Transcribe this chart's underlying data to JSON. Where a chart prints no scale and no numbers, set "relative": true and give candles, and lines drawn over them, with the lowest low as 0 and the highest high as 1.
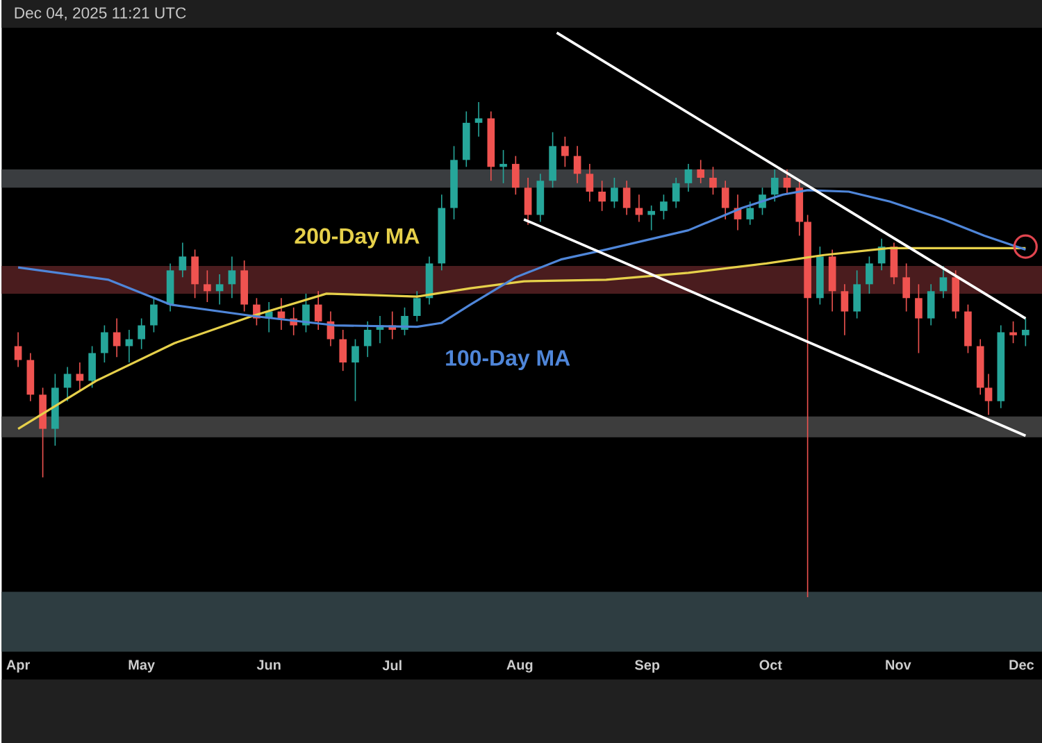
{
  "chart_data": {
    "type": "candlestick",
    "relative": true,
    "annotations": [
      "Dec 04, 2025 11:21 UTC"
    ],
    "xlim": [
      "2025-03-28",
      "2025-12-06"
    ],
    "xticks": [
      {
        "value": "2025-04-01",
        "label": "Apr"
      },
      {
        "value": "2025-05-01",
        "label": "May"
      },
      {
        "value": "2025-06-01",
        "label": "Jun"
      },
      {
        "value": "2025-07-01",
        "label": "Jul"
      },
      {
        "value": "2025-08-01",
        "label": "Aug"
      },
      {
        "value": "2025-09-01",
        "label": "Sep"
      },
      {
        "value": "2025-10-01",
        "label": "Oct"
      },
      {
        "value": "2025-11-01",
        "label": "Nov"
      },
      {
        "value": "2025-12-01",
        "label": "Dec"
      }
    ],
    "x": [
      "2025-04-01",
      "2025-04-04",
      "2025-04-07",
      "2025-04-10",
      "2025-04-13",
      "2025-04-16",
      "2025-04-19",
      "2025-04-22",
      "2025-04-25",
      "2025-04-28",
      "2025-05-01",
      "2025-05-04",
      "2025-05-08",
      "2025-05-11",
      "2025-05-14",
      "2025-05-17",
      "2025-05-20",
      "2025-05-23",
      "2025-05-26",
      "2025-05-29",
      "2025-06-01",
      "2025-06-04",
      "2025-06-07",
      "2025-06-10",
      "2025-06-13",
      "2025-06-16",
      "2025-06-19",
      "2025-06-22",
      "2025-06-25",
      "2025-06-28",
      "2025-07-01",
      "2025-07-04",
      "2025-07-07",
      "2025-07-10",
      "2025-07-13",
      "2025-07-16",
      "2025-07-19",
      "2025-07-22",
      "2025-07-25",
      "2025-07-28",
      "2025-07-31",
      "2025-08-03",
      "2025-08-06",
      "2025-08-09",
      "2025-08-12",
      "2025-08-15",
      "2025-08-18",
      "2025-08-21",
      "2025-08-24",
      "2025-08-27",
      "2025-08-30",
      "2025-09-02",
      "2025-09-05",
      "2025-09-08",
      "2025-09-11",
      "2025-09-14",
      "2025-09-17",
      "2025-09-20",
      "2025-09-23",
      "2025-09-26",
      "2025-09-29",
      "2025-10-02",
      "2025-10-05",
      "2025-10-08",
      "2025-10-10",
      "2025-10-13",
      "2025-10-16",
      "2025-10-19",
      "2025-10-22",
      "2025-10-25",
      "2025-10-28",
      "2025-10-31",
      "2025-11-03",
      "2025-11-06",
      "2025-11-09",
      "2025-11-12",
      "2025-11-15",
      "2025-11-18",
      "2025-11-21",
      "2025-11-23",
      "2025-11-26",
      "2025-11-29",
      "2025-12-02"
    ],
    "ohlc": [
      [
        0.507,
        0.535,
        0.465,
        0.479
      ],
      [
        0.479,
        0.493,
        0.396,
        0.409
      ],
      [
        0.409,
        0.423,
        0.242,
        0.34
      ],
      [
        0.34,
        0.451,
        0.306,
        0.423
      ],
      [
        0.423,
        0.465,
        0.396,
        0.451
      ],
      [
        0.451,
        0.474,
        0.418,
        0.437
      ],
      [
        0.437,
        0.507,
        0.423,
        0.493
      ],
      [
        0.493,
        0.549,
        0.474,
        0.535
      ],
      [
        0.535,
        0.563,
        0.485,
        0.507
      ],
      [
        0.507,
        0.54,
        0.474,
        0.521
      ],
      [
        0.521,
        0.563,
        0.501,
        0.549
      ],
      [
        0.549,
        0.604,
        0.535,
        0.591
      ],
      [
        0.591,
        0.674,
        0.577,
        0.66
      ],
      [
        0.66,
        0.716,
        0.646,
        0.688
      ],
      [
        0.688,
        0.702,
        0.604,
        0.632
      ],
      [
        0.632,
        0.66,
        0.596,
        0.618
      ],
      [
        0.618,
        0.652,
        0.591,
        0.632
      ],
      [
        0.632,
        0.688,
        0.604,
        0.66
      ],
      [
        0.66,
        0.68,
        0.577,
        0.591
      ],
      [
        0.591,
        0.604,
        0.549,
        0.563
      ],
      [
        0.563,
        0.596,
        0.535,
        0.577
      ],
      [
        0.577,
        0.604,
        0.54,
        0.563
      ],
      [
        0.563,
        0.585,
        0.529,
        0.549
      ],
      [
        0.549,
        0.613,
        0.535,
        0.591
      ],
      [
        0.591,
        0.618,
        0.54,
        0.557
      ],
      [
        0.557,
        0.577,
        0.507,
        0.521
      ],
      [
        0.521,
        0.54,
        0.457,
        0.474
      ],
      [
        0.474,
        0.521,
        0.396,
        0.507
      ],
      [
        0.507,
        0.557,
        0.485,
        0.54
      ],
      [
        0.54,
        0.568,
        0.513,
        0.549
      ],
      [
        0.549,
        0.577,
        0.521,
        0.54
      ],
      [
        0.54,
        0.585,
        0.529,
        0.568
      ],
      [
        0.568,
        0.618,
        0.557,
        0.604
      ],
      [
        0.604,
        0.688,
        0.591,
        0.674
      ],
      [
        0.674,
        0.813,
        0.66,
        0.786
      ],
      [
        0.786,
        0.911,
        0.763,
        0.883
      ],
      [
        0.883,
        0.981,
        0.869,
        0.958
      ],
      [
        0.958,
        1.0,
        0.93,
        0.967
      ],
      [
        0.967,
        0.981,
        0.841,
        0.869
      ],
      [
        0.869,
        0.903,
        0.836,
        0.875
      ],
      [
        0.875,
        0.891,
        0.813,
        0.827
      ],
      [
        0.827,
        0.847,
        0.752,
        0.772
      ],
      [
        0.772,
        0.855,
        0.758,
        0.841
      ],
      [
        0.841,
        0.939,
        0.827,
        0.911
      ],
      [
        0.911,
        0.93,
        0.869,
        0.891
      ],
      [
        0.891,
        0.911,
        0.836,
        0.855
      ],
      [
        0.855,
        0.875,
        0.799,
        0.819
      ],
      [
        0.819,
        0.841,
        0.78,
        0.799
      ],
      [
        0.799,
        0.847,
        0.786,
        0.827
      ],
      [
        0.827,
        0.841,
        0.772,
        0.786
      ],
      [
        0.786,
        0.813,
        0.758,
        0.772
      ],
      [
        0.772,
        0.791,
        0.741,
        0.78
      ],
      [
        0.78,
        0.813,
        0.763,
        0.799
      ],
      [
        0.799,
        0.847,
        0.786,
        0.836
      ],
      [
        0.836,
        0.875,
        0.819,
        0.864
      ],
      [
        0.864,
        0.883,
        0.836,
        0.847
      ],
      [
        0.847,
        0.869,
        0.813,
        0.827
      ],
      [
        0.827,
        0.841,
        0.763,
        0.786
      ],
      [
        0.786,
        0.813,
        0.741,
        0.763
      ],
      [
        0.763,
        0.799,
        0.752,
        0.786
      ],
      [
        0.786,
        0.827,
        0.772,
        0.813
      ],
      [
        0.813,
        0.864,
        0.799,
        0.847
      ],
      [
        0.847,
        0.864,
        0.813,
        0.827
      ],
      [
        0.827,
        0.841,
        0.73,
        0.758
      ],
      [
        0.758,
        0.772,
        0.0,
        0.604
      ],
      [
        0.604,
        0.708,
        0.591,
        0.688
      ],
      [
        0.688,
        0.702,
        0.577,
        0.618
      ],
      [
        0.618,
        0.632,
        0.529,
        0.577
      ],
      [
        0.577,
        0.66,
        0.563,
        0.632
      ],
      [
        0.632,
        0.688,
        0.613,
        0.674
      ],
      [
        0.674,
        0.724,
        0.66,
        0.708
      ],
      [
        0.708,
        0.716,
        0.632,
        0.646
      ],
      [
        0.646,
        0.674,
        0.577,
        0.604
      ],
      [
        0.604,
        0.632,
        0.493,
        0.563
      ],
      [
        0.563,
        0.632,
        0.549,
        0.618
      ],
      [
        0.618,
        0.669,
        0.604,
        0.646
      ],
      [
        0.646,
        0.66,
        0.563,
        0.577
      ],
      [
        0.577,
        0.591,
        0.493,
        0.507
      ],
      [
        0.507,
        0.521,
        0.409,
        0.423
      ],
      [
        0.423,
        0.451,
        0.368,
        0.396
      ],
      [
        0.396,
        0.549,
        0.382,
        0.535
      ],
      [
        0.535,
        0.557,
        0.513,
        0.529
      ],
      [
        0.529,
        0.563,
        0.507,
        0.54
      ]
    ],
    "colors": [
      "#ef5350",
      "#ef5350",
      "#ef5350",
      "#26a69a",
      "#26a69a",
      "#ef5350",
      "#26a69a",
      "#26a69a",
      "#ef5350",
      "#26a69a",
      "#26a69a",
      "#26a69a",
      "#26a69a",
      "#26a69a",
      "#ef5350",
      "#ef5350",
      "#26a69a",
      "#26a69a",
      "#ef5350",
      "#ef5350",
      "#26a69a",
      "#ef5350",
      "#ef5350",
      "#26a69a",
      "#ef5350",
      "#ef5350",
      "#ef5350",
      "#26a69a",
      "#26a69a",
      "#26a69a",
      "#ef5350",
      "#26a69a",
      "#26a69a",
      "#26a69a",
      "#26a69a",
      "#26a69a",
      "#26a69a",
      "#26a69a",
      "#ef5350",
      "#26a69a",
      "#ef5350",
      "#ef5350",
      "#26a69a",
      "#26a69a",
      "#ef5350",
      "#ef5350",
      "#ef5350",
      "#ef5350",
      "#26a69a",
      "#ef5350",
      "#ef5350",
      "#26a69a",
      "#26a69a",
      "#26a69a",
      "#26a69a",
      "#ef5350",
      "#ef5350",
      "#ef5350",
      "#ef5350",
      "#26a69a",
      "#26a69a",
      "#26a69a",
      "#ef5350",
      "#ef5350",
      "#ef5350",
      "#26a69a",
      "#ef5350",
      "#ef5350",
      "#26a69a",
      "#26a69a",
      "#26a69a",
      "#ef5350",
      "#ef5350",
      "#ef5350",
      "#26a69a",
      "#26a69a",
      "#ef5350",
      "#ef5350",
      "#ef5350",
      "#ef5350",
      "#26a69a",
      "#ef5350",
      "#26a69a"
    ],
    "series": [
      {
        "name": "200-Day MA",
        "type": "line",
        "color": "#e6d04a",
        "x": [
          "2025-04-01",
          "2025-04-20",
          "2025-05-09",
          "2025-05-28",
          "2025-06-15",
          "2025-06-27",
          "2025-07-07",
          "2025-07-20",
          "2025-08-02",
          "2025-08-22",
          "2025-09-11",
          "2025-09-30",
          "2025-10-14",
          "2025-10-30",
          "2025-12-02"
        ],
        "values": [
          0.34,
          0.437,
          0.513,
          0.568,
          0.613,
          0.61,
          0.607,
          0.624,
          0.638,
          0.641,
          0.655,
          0.674,
          0.691,
          0.705,
          0.705
        ]
      },
      {
        "name": "100-Day MA",
        "type": "line",
        "color": "#4f86d9",
        "x": [
          "2025-04-01",
          "2025-04-23",
          "2025-05-08",
          "2025-05-28",
          "2025-06-17",
          "2025-07-07",
          "2025-07-13",
          "2025-07-20",
          "2025-07-31",
          "2025-08-11",
          "2025-08-22",
          "2025-09-11",
          "2025-09-24",
          "2025-10-04",
          "2025-10-10",
          "2025-10-20",
          "2025-10-30",
          "2025-11-12",
          "2025-11-22",
          "2025-12-02"
        ],
        "values": [
          0.666,
          0.641,
          0.591,
          0.568,
          0.549,
          0.546,
          0.554,
          0.591,
          0.646,
          0.682,
          0.702,
          0.741,
          0.786,
          0.813,
          0.822,
          0.819,
          0.799,
          0.763,
          0.73,
          0.702
        ]
      },
      {
        "type": "line",
        "color": "#ffffff",
        "x": [
          "2025-08-10",
          "2025-12-02"
        ],
        "values": [
          1.14,
          0.563
        ]
      },
      {
        "type": "line",
        "color": "#ffffff",
        "x": [
          "2025-08-02",
          "2025-12-02"
        ],
        "values": [
          0.763,
          0.326
        ]
      },
      {
        "type": "scatter",
        "marker": "circle",
        "color": "#e0454f",
        "x": [
          "2025-12-02"
        ],
        "values": [
          0.708
        ]
      }
    ],
    "bands": [
      {
        "axis": "y",
        "from": 0.827,
        "to": 0.864,
        "color": "#3a3d40"
      },
      {
        "axis": "y",
        "from": 0.613,
        "to": 0.669,
        "color": "#4a1c1e"
      },
      {
        "axis": "y",
        "from": 0.323,
        "to": 0.365,
        "color": "#3d3d3d"
      },
      {
        "axis": "y",
        "from": -0.11,
        "to": 0.011,
        "color": "#2e3d41"
      }
    ]
  }
}
